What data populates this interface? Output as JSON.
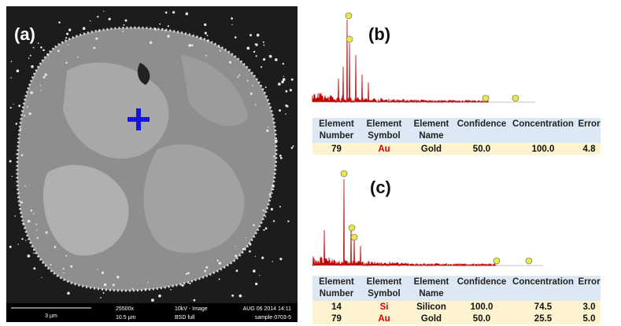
{
  "panel_a": {
    "label": "(a)",
    "scale_bar": "3 μm",
    "magnification": "25500x",
    "field_width": "10.5 μm",
    "mode": "10kV - Image",
    "detector": "BSD full",
    "date": "AUG 06 2014 14:11",
    "sample": "sample 0703-5"
  },
  "panel_b": {
    "label": "(b)",
    "table": {
      "header": [
        [
          "Element",
          "Number"
        ],
        [
          "Element",
          "Symbol"
        ],
        [
          "Element",
          "Name"
        ],
        [
          "Confidence"
        ],
        [
          "Concentration"
        ],
        [
          "Error"
        ]
      ],
      "rows": [
        [
          "79",
          "Au",
          "Gold",
          "50.0",
          "100.0",
          "4.8"
        ]
      ]
    }
  },
  "panel_c": {
    "label": "(c)",
    "table": {
      "header": [
        [
          "Element",
          "Number"
        ],
        [
          "Element",
          "Symbol"
        ],
        [
          "Element",
          "Name"
        ],
        [
          "Confidence"
        ],
        [
          "Concentration"
        ],
        [
          "Error"
        ]
      ],
      "rows": [
        [
          "14",
          "Si",
          "Silicon",
          "100.0",
          "74.5",
          "3.0"
        ],
        [
          "79",
          "Au",
          "Gold",
          "50.0",
          "25.5",
          "5.0"
        ]
      ]
    }
  }
}
